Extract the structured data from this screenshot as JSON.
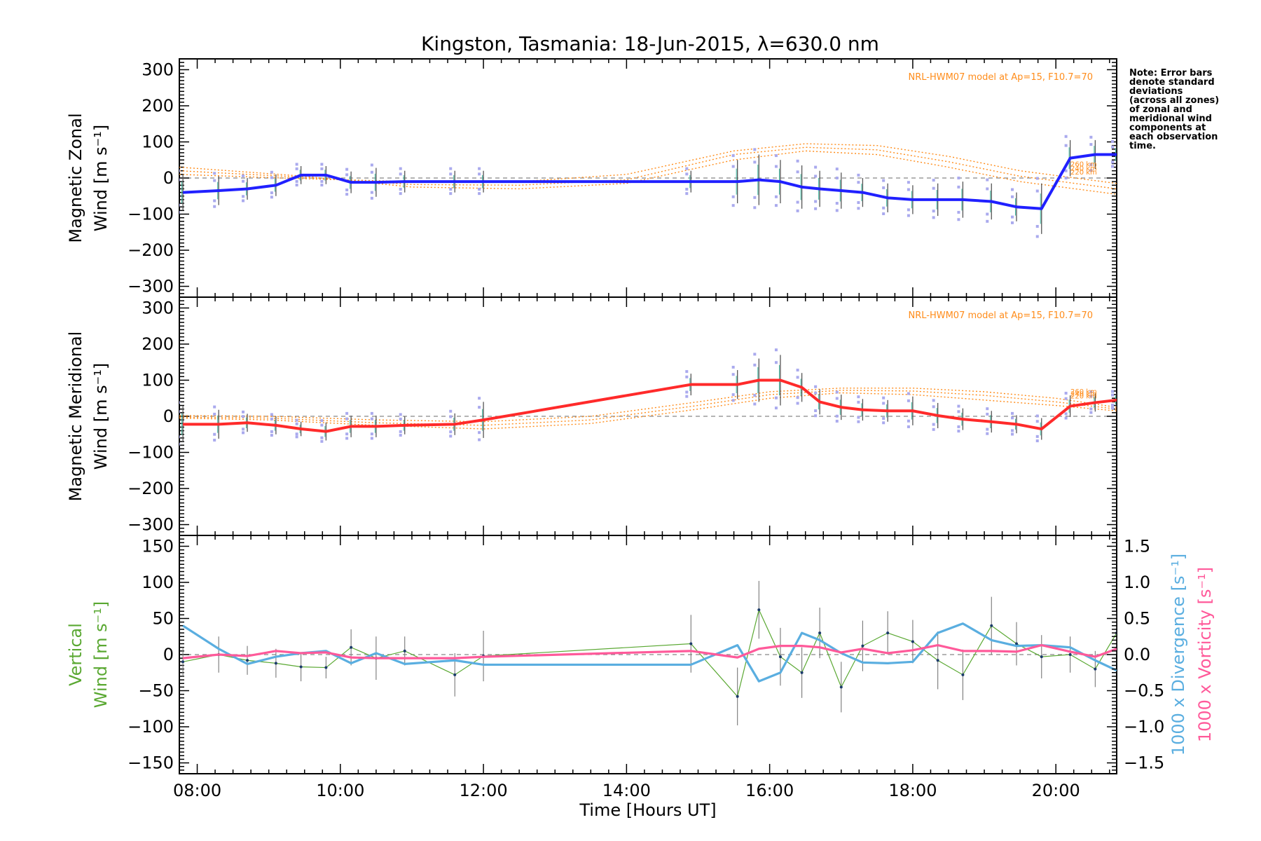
{
  "title": "Kingston, Tasmania: 18-Jun-2015, λ=630.0 nm",
  "note_lines": [
    "Note: Error bars",
    "denote standard",
    "deviations",
    "(across all zones)",
    "of zonal and",
    "meridional wind",
    "components at",
    "each observation",
    "time."
  ],
  "model_label": "NRL-HWM07 model at Ap=15, F10.7=70",
  "colors": {
    "zonal": "#2020ff",
    "meridional": "#ff2a2a",
    "vertical": "#5aa832",
    "divergence": "#5aaee0",
    "vorticity": "#ff5a9a",
    "model": "#ff8c1a",
    "samples": "#aaaaee"
  },
  "chart_data": [
    {
      "type": "line",
      "name": "zonal",
      "ylabel_lines": [
        "Magnetic Zonal",
        "Wind [m s⁻¹]"
      ],
      "ylim": [
        -330,
        330
      ],
      "yticks": [
        300,
        200,
        100,
        0,
        -100,
        -200,
        -300
      ],
      "xlim": [
        7.75,
        20.85
      ],
      "alt_labels": [
        "220 km",
        "240 km",
        "260 km"
      ],
      "x": [
        7.8,
        8.3,
        8.7,
        9.1,
        9.45,
        9.8,
        10.15,
        10.5,
        10.9,
        11.6,
        12.0,
        14.9,
        15.55,
        15.85,
        16.15,
        16.45,
        16.7,
        17.0,
        17.3,
        17.65,
        18.0,
        18.35,
        18.7,
        19.1,
        19.45,
        19.8,
        20.2,
        20.55,
        20.85
      ],
      "y": [
        -40,
        -35,
        -30,
        -20,
        8,
        8,
        -12,
        -12,
        -10,
        -10,
        -10,
        -10,
        -10,
        -5,
        -10,
        -25,
        -30,
        -35,
        -40,
        -55,
        -60,
        -60,
        -60,
        -65,
        -80,
        -85,
        55,
        65,
        65
      ],
      "err": [
        50,
        40,
        30,
        30,
        25,
        25,
        30,
        40,
        30,
        30,
        30,
        30,
        60,
        70,
        60,
        60,
        50,
        50,
        40,
        40,
        40,
        45,
        50,
        50,
        40,
        70,
        50,
        40,
        30
      ],
      "model": [
        {
          "x": [
            7.75,
            9.5,
            11.0,
            12.5,
            14.0,
            15.5,
            16.5,
            17.5,
            18.5,
            19.5,
            20.85
          ],
          "y": [
            30,
            5,
            -25,
            -30,
            -15,
            50,
            75,
            65,
            30,
            -10,
            -45
          ]
        },
        {
          "x": [
            7.75,
            9.5,
            11.0,
            12.5,
            14.0,
            15.5,
            16.5,
            17.5,
            18.5,
            19.5,
            20.85
          ],
          "y": [
            20,
            2,
            -18,
            -20,
            -5,
            65,
            85,
            78,
            45,
            5,
            -30
          ]
        },
        {
          "x": [
            7.75,
            9.5,
            11.0,
            12.5,
            14.0,
            15.5,
            16.5,
            17.5,
            18.5,
            19.5,
            20.85
          ],
          "y": [
            10,
            -2,
            -10,
            -10,
            10,
            75,
            95,
            90,
            60,
            20,
            -15
          ]
        }
      ]
    },
    {
      "type": "line",
      "name": "meridional",
      "ylabel_lines": [
        "Magnetic Meridional",
        "Wind [m s⁻¹]"
      ],
      "ylim": [
        -330,
        330
      ],
      "yticks": [
        300,
        200,
        100,
        0,
        -100,
        -200,
        -300
      ],
      "xlim": [
        7.75,
        20.85
      ],
      "alt_labels": [
        "220 km",
        "240 km",
        "260 km"
      ],
      "x": [
        7.8,
        8.3,
        8.7,
        9.1,
        9.45,
        9.8,
        10.15,
        10.5,
        10.9,
        11.6,
        12.0,
        14.9,
        15.55,
        15.85,
        16.15,
        16.45,
        16.7,
        17.0,
        17.3,
        17.65,
        18.0,
        18.35,
        18.7,
        19.1,
        19.45,
        19.8,
        20.2,
        20.55,
        20.85
      ],
      "y": [
        -22,
        -22,
        -18,
        -25,
        -35,
        -42,
        -28,
        -28,
        -25,
        -22,
        -10,
        88,
        88,
        100,
        100,
        80,
        40,
        25,
        18,
        15,
        15,
        2,
        -8,
        -15,
        -22,
        -35,
        28,
        38,
        45
      ],
      "err": [
        50,
        40,
        25,
        25,
        20,
        25,
        30,
        30,
        25,
        30,
        50,
        30,
        40,
        60,
        70,
        40,
        35,
        35,
        30,
        30,
        40,
        35,
        30,
        30,
        25,
        30,
        30,
        25,
        20
      ],
      "model": [
        {
          "x": [
            7.75,
            9.0,
            10.5,
            12.0,
            13.5,
            15.0,
            16.0,
            17.0,
            18.0,
            19.0,
            20.0,
            20.85
          ],
          "y": [
            -5,
            -10,
            -25,
            -35,
            -20,
            20,
            50,
            65,
            60,
            45,
            30,
            15
          ]
        },
        {
          "x": [
            7.75,
            9.0,
            10.5,
            12.0,
            13.5,
            15.0,
            16.0,
            17.0,
            18.0,
            19.0,
            20.0,
            20.85
          ],
          "y": [
            -2,
            -5,
            -18,
            -25,
            -10,
            30,
            60,
            72,
            70,
            58,
            40,
            20
          ]
        },
        {
          "x": [
            7.75,
            9.0,
            10.5,
            12.0,
            13.5,
            15.0,
            16.0,
            17.0,
            18.0,
            19.0,
            20.0,
            20.85
          ],
          "y": [
            2,
            0,
            -10,
            -15,
            0,
            40,
            68,
            78,
            78,
            68,
            50,
            25
          ]
        }
      ]
    },
    {
      "type": "line",
      "name": "vertical",
      "ylabel_lines": [
        "Vertical",
        "Wind [m s⁻¹]"
      ],
      "ylim": [
        -165,
        165
      ],
      "yticks": [
        150,
        100,
        50,
        0,
        -50,
        -100,
        -150
      ],
      "y2label": [
        "1000 x Divergence [s⁻¹]",
        "1000 x Vorticity [s⁻¹]"
      ],
      "y2lim": [
        -1.65,
        1.65
      ],
      "y2ticks": [
        1.5,
        1.0,
        0.5,
        0.0,
        -0.5,
        -1.0,
        -1.5
      ],
      "xlim": [
        7.75,
        20.85
      ],
      "xticks": [
        8,
        10,
        12,
        14,
        16,
        18,
        20
      ],
      "xticklabels": [
        "08:00",
        "10:00",
        "12:00",
        "14:00",
        "16:00",
        "18:00",
        "20:00"
      ],
      "xlabel": "Time [Hours UT]",
      "series": [
        {
          "name": "Vertical wind",
          "axis": "left",
          "x": [
            7.8,
            8.3,
            8.7,
            9.1,
            9.45,
            9.8,
            10.15,
            10.5,
            10.9,
            11.6,
            12.0,
            14.9,
            15.55,
            15.85,
            16.15,
            16.45,
            16.7,
            17.0,
            17.3,
            17.65,
            18.0,
            18.35,
            18.7,
            19.1,
            19.45,
            19.8,
            20.2,
            20.55,
            20.85
          ],
          "y": [
            -10,
            0,
            -8,
            -12,
            -17,
            -18,
            10,
            -5,
            5,
            -28,
            -2,
            15,
            -58,
            62,
            -3,
            -25,
            30,
            -45,
            12,
            30,
            18,
            -8,
            -28,
            40,
            15,
            -3,
            0,
            -20,
            30
          ],
          "err": [
            20,
            25,
            20,
            20,
            20,
            15,
            25,
            30,
            20,
            30,
            35,
            40,
            40,
            40,
            40,
            35,
            35,
            35,
            35,
            30,
            30,
            40,
            35,
            40,
            30,
            30,
            25,
            25,
            30
          ]
        },
        {
          "name": "1000 x Divergence",
          "axis": "right",
          "x": [
            7.8,
            8.3,
            8.7,
            9.1,
            9.45,
            9.8,
            10.15,
            10.5,
            10.9,
            11.6,
            12.0,
            14.9,
            15.55,
            15.85,
            16.15,
            16.45,
            16.7,
            17.0,
            17.3,
            17.65,
            18.0,
            18.35,
            18.7,
            19.1,
            19.45,
            19.8,
            20.2,
            20.55,
            20.85
          ],
          "y": [
            0.4,
            0.08,
            -0.13,
            -0.03,
            0.02,
            0.05,
            -0.12,
            0.02,
            -0.13,
            -0.08,
            -0.14,
            -0.14,
            0.13,
            -0.37,
            -0.25,
            0.3,
            0.2,
            0.02,
            -0.11,
            -0.12,
            -0.1,
            0.3,
            0.43,
            0.2,
            0.12,
            0.13,
            0.1,
            -0.08,
            -0.22
          ]
        },
        {
          "name": "1000 x Vorticity",
          "axis": "right",
          "x": [
            7.8,
            8.3,
            8.7,
            9.1,
            9.45,
            9.8,
            10.15,
            10.5,
            10.9,
            11.6,
            12.0,
            14.9,
            15.55,
            15.85,
            16.15,
            16.45,
            16.7,
            17.0,
            17.3,
            17.65,
            18.0,
            18.35,
            18.7,
            19.1,
            19.45,
            19.8,
            20.2,
            20.55,
            20.85
          ],
          "y": [
            -0.05,
            0.0,
            -0.02,
            0.05,
            0.02,
            0.03,
            -0.04,
            -0.05,
            -0.05,
            -0.05,
            -0.03,
            0.05,
            -0.04,
            0.08,
            0.12,
            0.12,
            0.1,
            0.03,
            0.08,
            0.02,
            0.06,
            0.13,
            0.05,
            0.05,
            0.04,
            0.13,
            0.04,
            -0.03,
            0.08
          ]
        }
      ]
    }
  ]
}
